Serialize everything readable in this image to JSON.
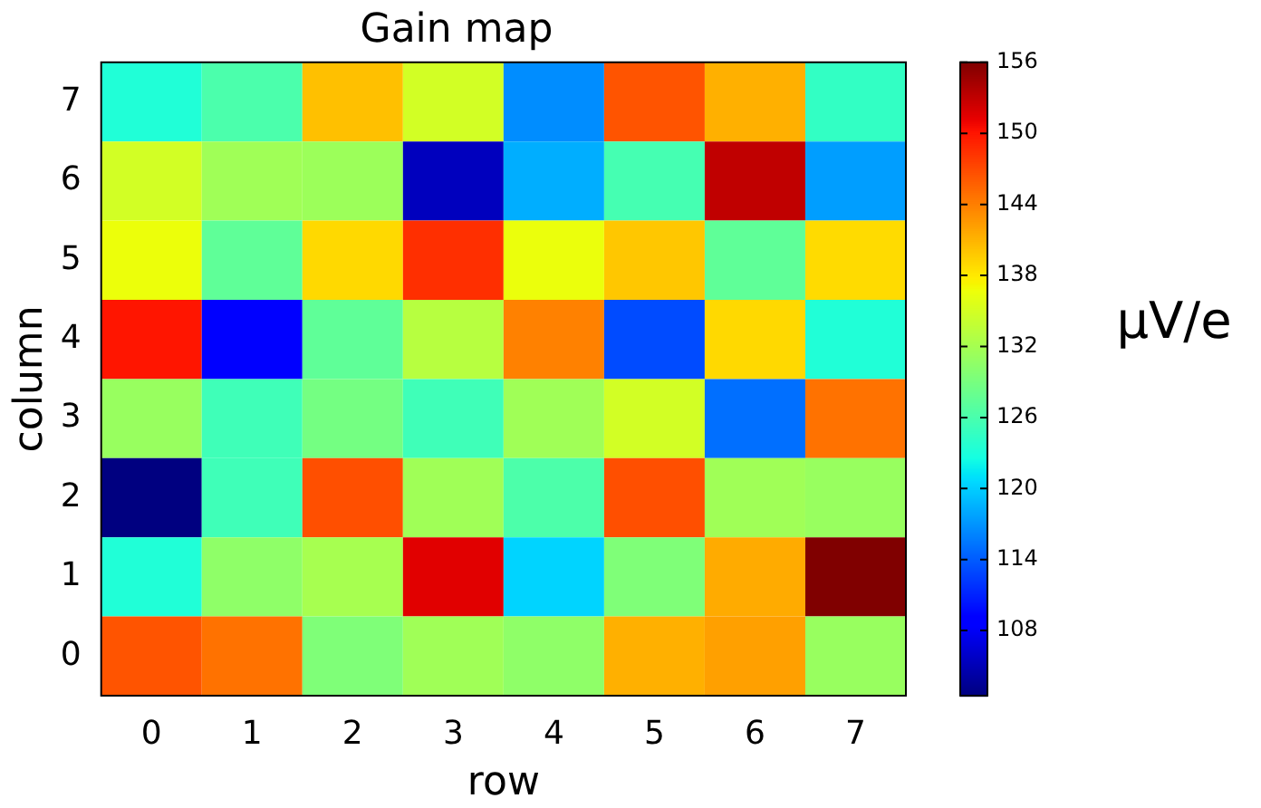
{
  "chart_data": {
    "type": "heatmap",
    "title": "Gain map",
    "xlabel": "row",
    "ylabel": "column",
    "clabel": "μV/e",
    "categories": [
      "0",
      "1",
      "2",
      "3",
      "4",
      "5",
      "6",
      "7"
    ],
    "y_categories": [
      "7",
      "6",
      "5",
      "4",
      "3",
      "2",
      "1",
      "0"
    ],
    "cells": [
      [
        123.3,
        126.1,
        140.3,
        134.9,
        116.6,
        146.4,
        141.2,
        124.5
      ],
      [
        134.9,
        131.6,
        131.4,
        105.4,
        118.3,
        125.7,
        153.0,
        117.5
      ],
      [
        136.6,
        127.4,
        138.9,
        148.5,
        136.5,
        139.9,
        127.4,
        138.8
      ],
      [
        150.0,
        108.6,
        127.4,
        133.1,
        143.9,
        113.1,
        138.9,
        123.3
      ],
      [
        131.1,
        125.3,
        128.8,
        125.3,
        131.6,
        134.9,
        115.0,
        144.7
      ],
      [
        102.5,
        125.3,
        146.7,
        131.6,
        126.2,
        146.7,
        131.6,
        131.1
      ],
      [
        123.3,
        130.5,
        132.1,
        151.5,
        120.3,
        129.5,
        141.5,
        156.0
      ],
      [
        146.4,
        144.7,
        129.5,
        131.6,
        130.5,
        141.2,
        142.1,
        131.1
      ]
    ],
    "clim": [
      102.5,
      156
    ],
    "cticks": [
      108,
      114,
      120,
      126,
      132,
      138,
      144,
      150,
      156
    ]
  }
}
